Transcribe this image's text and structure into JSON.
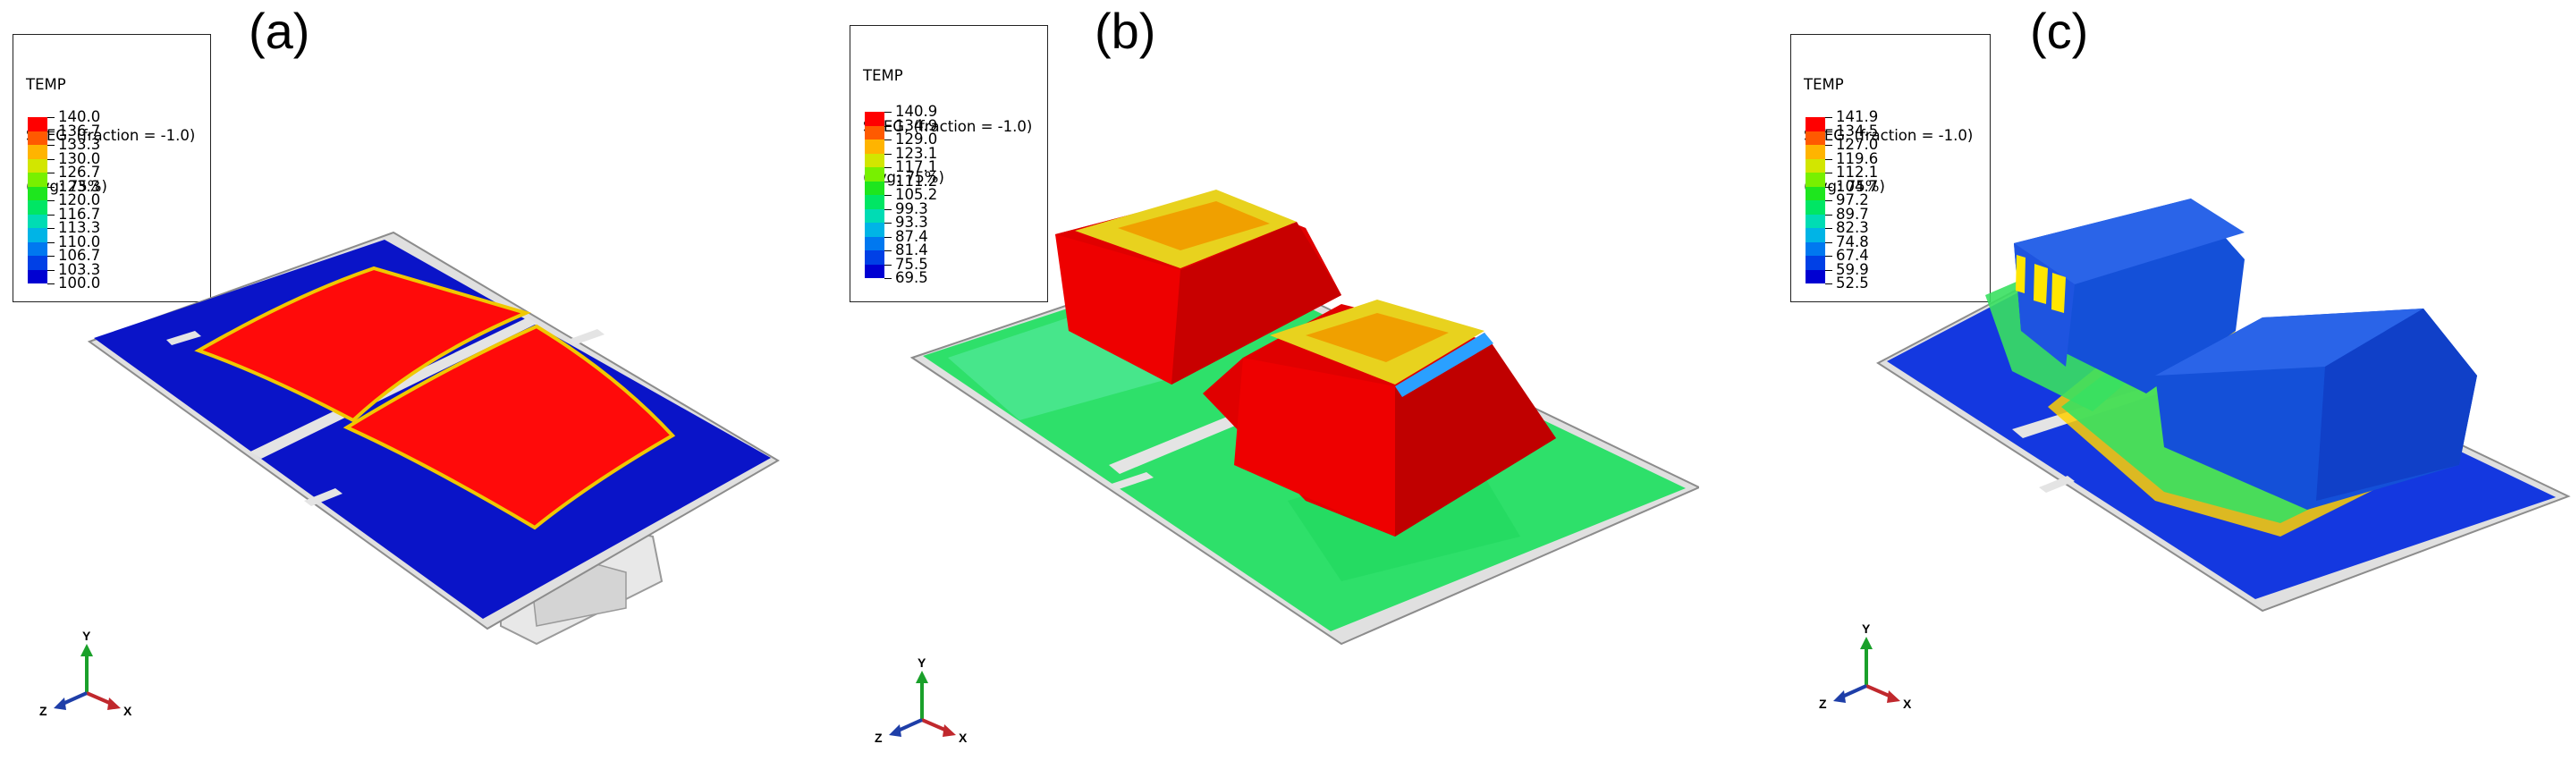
{
  "panels": [
    {
      "id": "a",
      "label": "(a)",
      "legend": {
        "header": [
          "TEMP",
          "SNEG, (fraction = -1.0)",
          "(Avg: 75%)"
        ],
        "values": [
          "140.0",
          "136.7",
          "133.3",
          "130.0",
          "126.7",
          "123.3",
          "120.0",
          "116.7",
          "113.3",
          "110.0",
          "106.7",
          "103.3",
          "100.0"
        ]
      }
    },
    {
      "id": "b",
      "label": "(b)",
      "legend": {
        "header": [
          "TEMP",
          "SNEG, (fraction = -1.0)",
          "(Avg: 75%)"
        ],
        "values": [
          "140.9",
          "134.9",
          "129.0",
          "123.1",
          "117.1",
          "111.2",
          "105.2",
          "99.3",
          "93.3",
          "87.4",
          "81.4",
          "75.5",
          "69.5"
        ]
      }
    },
    {
      "id": "c",
      "label": "(c)",
      "legend": {
        "header": [
          "TEMP",
          "SNEG, (fraction = -1.0)",
          "(Avg: 75%)"
        ],
        "values": [
          "141.9",
          "134.5",
          "127.0",
          "119.6",
          "112.1",
          "104.7",
          "97.2",
          "89.7",
          "82.3",
          "74.8",
          "67.4",
          "59.9",
          "52.5"
        ]
      }
    }
  ],
  "colormap": [
    "#ff0000",
    "#ff5a00",
    "#ffb400",
    "#d2e600",
    "#78f000",
    "#1ee61e",
    "#00e664",
    "#00dcb4",
    "#00b4e6",
    "#0078f0",
    "#0040e6",
    "#0000d2"
  ],
  "triad": {
    "x": "X",
    "y": "Y",
    "z": "Z",
    "x_color": "#c0282d",
    "y_color": "#1aa02a",
    "z_color": "#1e3ea8"
  }
}
